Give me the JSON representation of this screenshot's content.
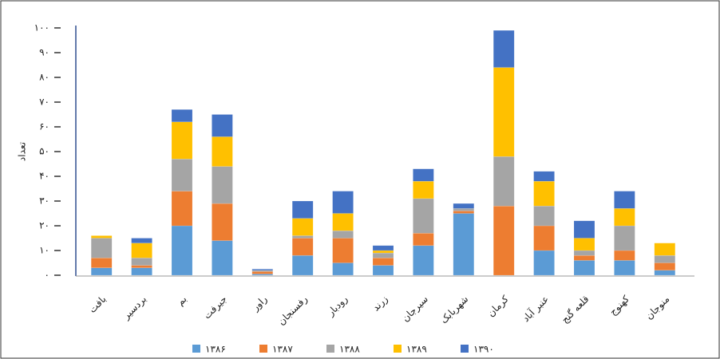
{
  "chart_data": {
    "type": "bar",
    "stacked": true,
    "y_label": "تعداد",
    "categories": [
      "بافت",
      "بردسیر",
      "بم",
      "جیرفت",
      "راور",
      "رفسنجان",
      "رودبار",
      "زرند",
      "سیرجان",
      "شهربابک",
      "کرمان",
      "عنبر آباد",
      "قلعه گنج",
      "کهنوج",
      "منوجان"
    ],
    "series": [
      {
        "name": "۱۳۸۶",
        "color": "#5b9bd5",
        "values": [
          3,
          3,
          20,
          14,
          0.5,
          8,
          5,
          4,
          12,
          25,
          0,
          10,
          6,
          6,
          2
        ]
      },
      {
        "name": "۱۳۸۷",
        "color": "#ed7d31",
        "values": [
          4,
          1,
          14,
          15,
          1,
          7,
          10,
          3,
          5,
          1,
          28,
          10,
          2,
          4,
          3
        ]
      },
      {
        "name": "۱۳۸۸",
        "color": "#a5a5a5",
        "values": [
          8,
          3,
          13,
          15,
          0.5,
          1,
          3,
          2,
          14,
          1,
          20,
          8,
          2,
          10,
          3
        ]
      },
      {
        "name": "۱۳۸۹",
        "color": "#ffc000",
        "values": [
          1,
          6,
          15,
          12,
          0,
          7,
          7,
          1,
          7,
          0,
          36,
          10,
          5,
          7,
          5
        ]
      },
      {
        "name": "۱۳۹۰",
        "color": "#4472c4",
        "values": [
          0,
          2,
          5,
          9,
          0.5,
          7,
          9,
          2,
          5,
          2,
          15,
          4,
          7,
          7,
          0
        ]
      }
    ],
    "ylim": [
      0,
      100
    ],
    "yticks": [
      {
        "value": 0,
        "label": "۰"
      },
      {
        "value": 10,
        "label": "۱۰"
      },
      {
        "value": 20,
        "label": "۲۰"
      },
      {
        "value": 30,
        "label": "۳۰"
      },
      {
        "value": 40,
        "label": "۴۰"
      },
      {
        "value": 50,
        "label": "۵۰"
      },
      {
        "value": 60,
        "label": "۶۰"
      },
      {
        "value": 70,
        "label": "۷۰"
      },
      {
        "value": 80,
        "label": "۸۰"
      },
      {
        "value": 90,
        "label": "۹۰"
      },
      {
        "value": 100,
        "label": "۱۰۰"
      }
    ],
    "legend": "bottom"
  }
}
